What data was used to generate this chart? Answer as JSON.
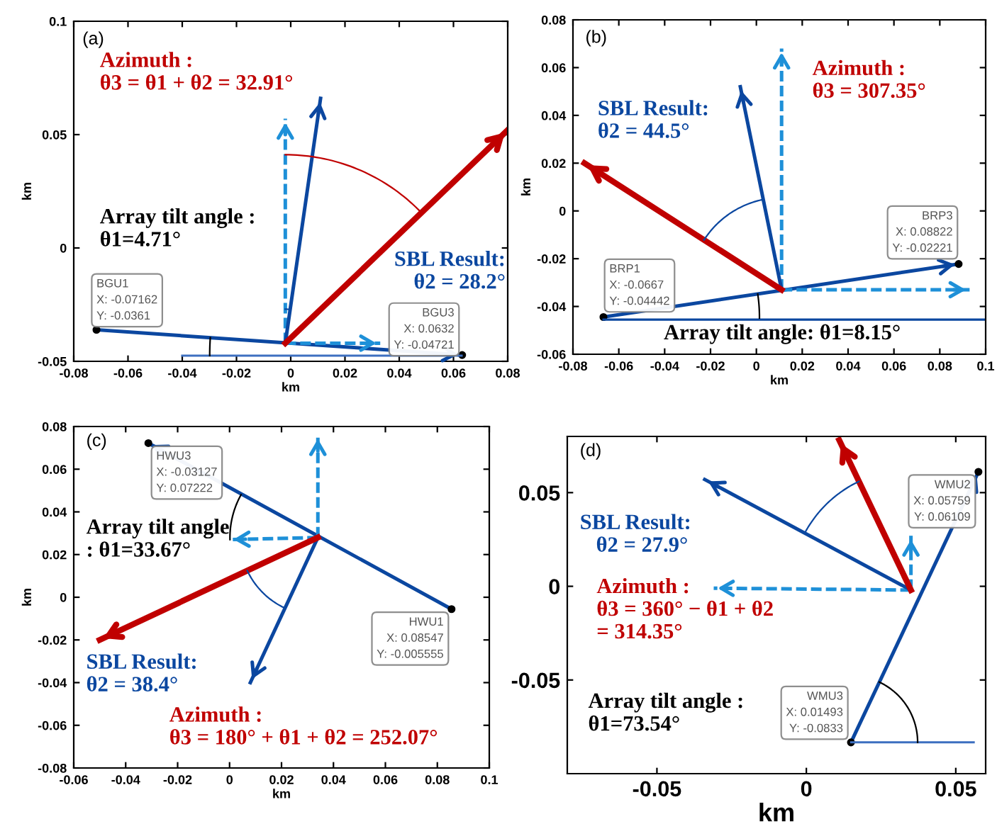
{
  "chart_data": [
    {
      "type": "line",
      "xlabel": "km",
      "ylabel": "km",
      "xlim": [
        -0.08,
        0.08
      ],
      "ylim": [
        -0.05,
        0.1
      ],
      "xticks": [
        -0.08,
        -0.06,
        -0.04,
        -0.02,
        0,
        0.02,
        0.04,
        0.06,
        0.08
      ],
      "yticks": [
        -0.05,
        0,
        0.05,
        0.1
      ],
      "grid": false,
      "legend": false,
      "series": [
        {
          "color": "#0b47a0",
          "line_style": "solid",
          "marker": "circle",
          "x": [
            -0.07162,
            0.0632
          ],
          "values": [
            -0.0361,
            -0.04721
          ]
        },
        {
          "color": "#1e90d8",
          "line_style": "dashed",
          "x": [
            -0.002,
            -0.002
          ],
          "values": [
            -0.042,
            0.057
          ]
        },
        {
          "color": "#1e90d8",
          "line_style": "dashed",
          "x": [
            -0.002,
            0.033
          ],
          "values": [
            -0.042,
            -0.042
          ]
        },
        {
          "name": "SBL Result:\nθ2 = 28.2°",
          "color": "#0b47a0",
          "line_style": "solid",
          "x": [
            -0.002,
            0.011
          ],
          "values": [
            -0.042,
            0.066
          ]
        },
        {
          "name": "Azimuth :\nθ3 = θ1 + θ2 = 32.91°",
          "color": "#c00000",
          "line_style": "solid",
          "x": [
            -0.002,
            0.08
          ],
          "values": [
            -0.042,
            0.052
          ]
        },
        {
          "color": "#3d6fc0",
          "line_style": "solid",
          "x": [
            -0.04,
            0.063
          ],
          "values": [
            -0.0475,
            -0.0475
          ]
        }
      ],
      "annotations": [
        "(a)",
        "Array tilt angle :\nθ1=4.71°",
        {
          "text": "BGU1\nX: -0.07162\nY: -0.0361",
          "x": -0.07162,
          "y": -0.0361
        },
        {
          "text": "BGU3\nX: 0.0632\nY: -0.04721",
          "x": 0.0632,
          "y": -0.04721
        }
      ]
    },
    {
      "type": "line",
      "xlabel": "km",
      "ylabel": "km",
      "xlim": [
        -0.08,
        0.1
      ],
      "ylim": [
        -0.06,
        0.08
      ],
      "xticks": [
        -0.08,
        -0.06,
        -0.04,
        -0.02,
        0,
        0.02,
        0.04,
        0.06,
        0.08,
        0.1
      ],
      "yticks": [
        -0.06,
        -0.04,
        -0.02,
        0,
        0.02,
        0.04,
        0.06,
        0.08
      ],
      "grid": false,
      "legend": false,
      "series": [
        {
          "color": "#0b47a0",
          "line_style": "solid",
          "marker": "circle",
          "x": [
            -0.0667,
            0.08822
          ],
          "values": [
            -0.04442,
            -0.02221
          ]
        },
        {
          "color": "#1e90d8",
          "line_style": "dashed",
          "x": [
            0.011,
            0.011
          ],
          "values": [
            -0.033,
            0.068
          ]
        },
        {
          "color": "#1e90d8",
          "line_style": "dashed",
          "x": [
            0.011,
            0.093
          ],
          "values": [
            -0.033,
            -0.033
          ]
        },
        {
          "name": "SBL Result:\nθ2 = 44.5°",
          "color": "#0b47a0",
          "line_style": "solid",
          "x": [
            0.011,
            -0.007
          ],
          "values": [
            -0.033,
            0.052
          ]
        },
        {
          "name": "Azimuth :\nθ3 = 307.35°",
          "color": "#c00000",
          "line_style": "solid",
          "x": [
            0.011,
            -0.075
          ],
          "values": [
            -0.033,
            0.02
          ]
        },
        {
          "color": "#0b47a0",
          "line_style": "solid",
          "x": [
            -0.0667,
            0.1
          ],
          "values": [
            -0.0455,
            -0.0455
          ]
        }
      ],
      "annotations": [
        "(b)",
        "Array tilt angle: θ1=8.15°",
        {
          "text": "BRP1\nX: -0.0667\nY: -0.04442",
          "x": -0.0667,
          "y": -0.04442
        },
        {
          "text": "BRP3\nX: 0.08822\nY: -0.02221",
          "x": 0.08822,
          "y": -0.02221
        }
      ]
    },
    {
      "type": "line",
      "xlabel": "km",
      "ylabel": "km",
      "xlim": [
        -0.06,
        0.1
      ],
      "ylim": [
        -0.08,
        0.08
      ],
      "xticks": [
        -0.06,
        -0.04,
        -0.02,
        0,
        0.02,
        0.04,
        0.06,
        0.08,
        0.1
      ],
      "yticks": [
        -0.08,
        -0.06,
        -0.04,
        -0.02,
        0,
        0.02,
        0.04,
        0.06,
        0.08
      ],
      "grid": false,
      "legend": false,
      "series": [
        {
          "color": "#0b47a0",
          "line_style": "solid",
          "marker": "circle",
          "x": [
            0.08547,
            -0.03127
          ],
          "values": [
            -0.005555,
            0.07222
          ]
        },
        {
          "color": "#1e90d8",
          "line_style": "dashed",
          "x": [
            0.034,
            0.034
          ],
          "values": [
            0.028,
            0.076
          ]
        },
        {
          "color": "#1e90d8",
          "line_style": "dashed",
          "x": [
            0.034,
            0.0
          ],
          "values": [
            0.028,
            0.027
          ]
        },
        {
          "name": "SBL Result:\nθ2 = 38.4°",
          "color": "#0b47a0",
          "line_style": "solid",
          "x": [
            0.034,
            0.008
          ],
          "values": [
            0.028,
            -0.04
          ]
        },
        {
          "name": "Azimuth :\nθ3 = 180° + θ1 + θ2 = 252.07°",
          "color": "#c00000",
          "line_style": "solid",
          "x": [
            0.034,
            -0.05
          ],
          "values": [
            0.028,
            -0.02
          ]
        }
      ],
      "annotations": [
        "(c)",
        "Array tilt angle\n: θ1=33.67°",
        {
          "text": "HWU3\nX: -0.03127\nY: 0.07222",
          "x": -0.03127,
          "y": 0.07222
        },
        {
          "text": "HWU1\nX: 0.08547\nY: -0.005555",
          "x": 0.08547,
          "y": -0.005555
        }
      ]
    },
    {
      "type": "line",
      "xlabel": "km",
      "xlim": [
        -0.08,
        0.06
      ],
      "ylim": [
        -0.1,
        0.08
      ],
      "xticks": [
        -0.05,
        0,
        0.05
      ],
      "yticks": [
        -0.05,
        0,
        0.05
      ],
      "grid": false,
      "legend": false,
      "series": [
        {
          "color": "#0b47a0",
          "line_style": "solid",
          "marker": "circle",
          "x": [
            0.01493,
            0.05759
          ],
          "values": [
            -0.0833,
            0.06109
          ]
        },
        {
          "color": "#1e90d8",
          "line_style": "dashed",
          "x": [
            0.035,
            0.035
          ],
          "values": [
            -0.002,
            0.027
          ]
        },
        {
          "color": "#1e90d8",
          "line_style": "dashed",
          "x": [
            0.035,
            -0.031
          ],
          "values": [
            -0.002,
            -0.001
          ]
        },
        {
          "name": "SBL Result:\n   θ2 = 27.9°",
          "color": "#0b47a0",
          "line_style": "solid",
          "x": [
            0.035,
            -0.034
          ],
          "values": [
            -0.002,
            0.057
          ]
        },
        {
          "name": "Azimuth :\nθ3 = 360° − θ1 + θ2\n= 314.35°",
          "color": "#c00000",
          "line_style": "solid",
          "x": [
            0.035,
            0.011
          ],
          "values": [
            -0.002,
            0.078
          ]
        },
        {
          "color": "#3d6fc0",
          "line_style": "solid",
          "x": [
            0.015,
            0.056
          ],
          "values": [
            -0.0833,
            -0.0833
          ]
        }
      ],
      "annotations": [
        "(d)",
        "Array tilt angle :\nθ1=73.54°",
        {
          "text": "WMU2\nX: 0.05759\nY: 0.06109",
          "x": 0.05759,
          "y": 0.06109
        },
        {
          "text": "WMU3\nX: 0.01493\nY: -0.0833",
          "x": 0.01493,
          "y": -0.0833
        }
      ]
    }
  ]
}
